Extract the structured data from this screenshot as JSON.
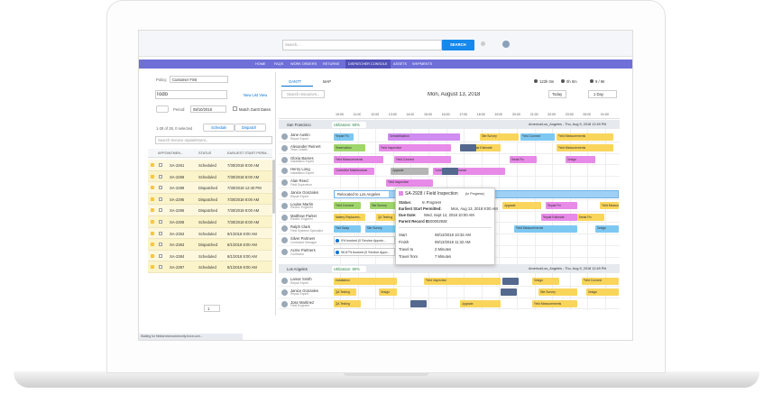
{
  "header": {
    "search_placeholder": "Search...",
    "search_button": "SEARCH"
  },
  "nav": [
    "HOME",
    "FAQS",
    "WORK ORDERS",
    "RETURNS",
    "DISPATCHER CONSOLE",
    "ASSETS",
    "SHIPMENTS"
  ],
  "left": {
    "policy_label": "Policy:",
    "policy_value": "Customer First",
    "list_title": "Todo",
    "new_list_view": "New List View",
    "period_label": "Period:",
    "period_value": "08/10/2018",
    "match_gantt": "Match Gantt Dates",
    "selected": "1-28 of 28, 0 selected",
    "schedule": "Schedule",
    "dispatch": "Dispatch",
    "search": "Search Service Appointment...",
    "columns": [
      "APPOINTMEN...",
      "STATUS",
      "EARLIEST START PERM..."
    ],
    "rows": [
      [
        "SA-2261",
        "Scheduled",
        "7/30/2018 8:00 AM"
      ],
      [
        "SA-2268",
        "Scheduled",
        "7/30/2018 8:00 AM"
      ],
      [
        "SA-2289",
        "Dispatched",
        "7/30/2018 12:40 PM"
      ],
      [
        "SA-2295",
        "Dispatched",
        "7/30/2018 8:00 AM"
      ],
      [
        "SA-2296",
        "Dispatched",
        "7/30/2018 8:00 AM"
      ],
      [
        "SA-2308",
        "Scheduled",
        "7/30/2018 8:00 AM"
      ],
      [
        "SA-2353",
        "Scheduled",
        "8/1/2018 8:00 AM"
      ],
      [
        "SA-2363",
        "Dispatched",
        "8/1/2018 8:00 AM"
      ],
      [
        "SA-2384",
        "Scheduled",
        "8/1/2018 8:00 AM"
      ],
      [
        "SA-2397",
        "Scheduled",
        "8/1/2018 8:00 AM"
      ]
    ],
    "page": "1"
  },
  "gantt": {
    "tabs": [
      "GANTT",
      "MAP"
    ],
    "stats": [
      "123h 0m",
      "0h 0m",
      "9 / 96"
    ],
    "search": "Search resources...",
    "date": "Mon, August 13, 2018",
    "today": "Today",
    "range": "1 Day",
    "times": [
      "10:00",
      "11:00",
      "12:00",
      "13:00",
      "14:00",
      "15:00",
      "16:00",
      "17:00",
      "18:00",
      "19:00",
      "20:00",
      "21:00",
      "22:00",
      "23:00",
      "00:00",
      "01:00"
    ],
    "territories": [
      {
        "name": "San Francisco",
        "utilization": "Utilization: 60%",
        "zone": "America/Los_Angeles - Thu, Aug 9, 2018 12:49 PM",
        "resources": [
          [
            "Jane Austin",
            "Repair Expert"
          ],
          [
            "Alexander Reinert",
            "Team Leader"
          ],
          [
            "Gloria Barnes",
            "Installation Expert"
          ],
          [
            "Henry Long",
            "Installation Expert"
          ],
          [
            "Alan Reed",
            "Field Supervisor"
          ],
          [
            "Janice Gonzales",
            "Repair Expert"
          ],
          [
            "Louise Martin",
            "Electric Engineer"
          ],
          [
            "Matthew Parker",
            "Electric Engineer"
          ],
          [
            "Ralph Clark",
            "Field Systems Specialist"
          ],
          [
            "Silver Partners",
            "Contractor Manager"
          ],
          [
            "Acme Partners",
            "Contractor"
          ]
        ]
      },
      {
        "name": "Los Angeles",
        "utilization": "Utilization: 80%",
        "zone": "America/Los_Angeles - Thu, Aug 9, 2018 12:49 PM",
        "resources": [
          [
            "Lamar Smith",
            "Repair Expert"
          ],
          [
            "Janice Gonzales",
            "Repair Expert"
          ],
          [
            "Jose Martinez",
            "Field Engineer"
          ]
        ]
      }
    ],
    "bars": [
      {
        "label": "Repair Fix",
        "color": "#7dc8f2"
      },
      {
        "label": "Demobilization",
        "color": "#d08cf0"
      },
      {
        "label": "Site Survey",
        "color": "#f9d55b"
      },
      {
        "label": "Field Connect",
        "color": "#7dc8f2"
      },
      {
        "label": "Field Measurements",
        "color": "#f9d55b"
      },
      {
        "label": "Reservation",
        "color": "#9fd66b"
      },
      {
        "label": "Field Inspection",
        "color": "#e88ae8"
      },
      {
        "label": "Repair Estimate",
        "color": "#f9d55b"
      },
      {
        "label": "Field Measurements",
        "color": "#f9d55b"
      },
      {
        "label": "Field Measurements",
        "color": "#e88ae8"
      },
      {
        "label": "Field Connect",
        "color": "#e88ae8"
      },
      {
        "label": "Break Fix",
        "color": "#e88ae8"
      },
      {
        "label": "Design",
        "color": "#e88ae8"
      },
      {
        "label": "Corrective Maintenance",
        "color": "#e88ae8"
      },
      {
        "label": "Upgrade",
        "color": "#b5b5b5"
      },
      {
        "label": "Corrective Maintenance",
        "color": "#e88ae8"
      },
      {
        "label": "Field Inspection",
        "color": "#e88ae8"
      },
      {
        "label": "Field Connect",
        "color": "#9fd66b"
      },
      {
        "label": "Site Survey",
        "color": "#9fd66b"
      },
      {
        "label": "Upgrade",
        "color": "#f9d55b"
      },
      {
        "label": "Repair Fix",
        "color": "#e88ae8"
      },
      {
        "label": "Field Measurem...",
        "color": "#f9d55b"
      },
      {
        "label": "Battery Replacem...",
        "color": "#f9d55b"
      },
      {
        "label": "QA Testing",
        "color": "#f9d55b"
      },
      {
        "label": "Repair Estimate",
        "color": "#e88ae8"
      },
      {
        "label": "Break Fix",
        "color": "#f9d55b"
      },
      {
        "label": "Part Swap",
        "color": "#7dc8f2"
      },
      {
        "label": "Site Survey",
        "color": "#7dc8f2"
      },
      {
        "label": "Field Measurements",
        "color": "#7dc8f2"
      },
      {
        "label": "Design",
        "color": "#7dc8f2"
      },
      {
        "label": "Installation",
        "color": "#f9d55b"
      },
      {
        "label": "Field Inspection",
        "color": "#f9d55b"
      },
      {
        "label": "Design",
        "color": "#f9d55b"
      },
      {
        "label": "Field Connect",
        "color": "#f9d55b"
      },
      {
        "label": "QA Testing",
        "color": "#f9d55b"
      },
      {
        "label": "Design",
        "color": "#f9d55b"
      },
      {
        "label": "Site Survey",
        "color": "#f9d55b"
      },
      {
        "label": "Design",
        "color": "#f9d55b"
      },
      {
        "label": "QA Testing",
        "color": "#f9d55b"
      },
      {
        "label": "Upgrade",
        "color": "#f9d55b"
      },
      {
        "label": "Field Measurements",
        "color": "#f9d55b"
      }
    ],
    "relocated": "Relocated to Los Angeles",
    "capacity": [
      "0% booked (0 Service Appoin...",
      "96.67% booked (0 Service Appo..."
    ],
    "popup": {
      "title": "SA-2928 / Field Inspection",
      "state": "(In Progress)",
      "fields": [
        [
          "Status:",
          "In Progress"
        ],
        [
          "Earliest Start Permitted:",
          "Mon, Aug 13, 2018 8:00 AM"
        ],
        [
          "Due Date:",
          "Wed, Sept 12, 2018 10:00 AM"
        ],
        [
          "Parent Record ID:",
          "00002928"
        ]
      ],
      "times": [
        [
          "Start",
          "08/13/2018 10:32 AM"
        ],
        [
          "Finish",
          "08/13/2018 11:32 AM"
        ],
        [
          "Travel to",
          "2 Minutes"
        ],
        [
          "Travel from",
          "7 Minutes"
        ]
      ]
    }
  },
  "status_bar": "Waiting for fieldservicecommunity.force.com..."
}
